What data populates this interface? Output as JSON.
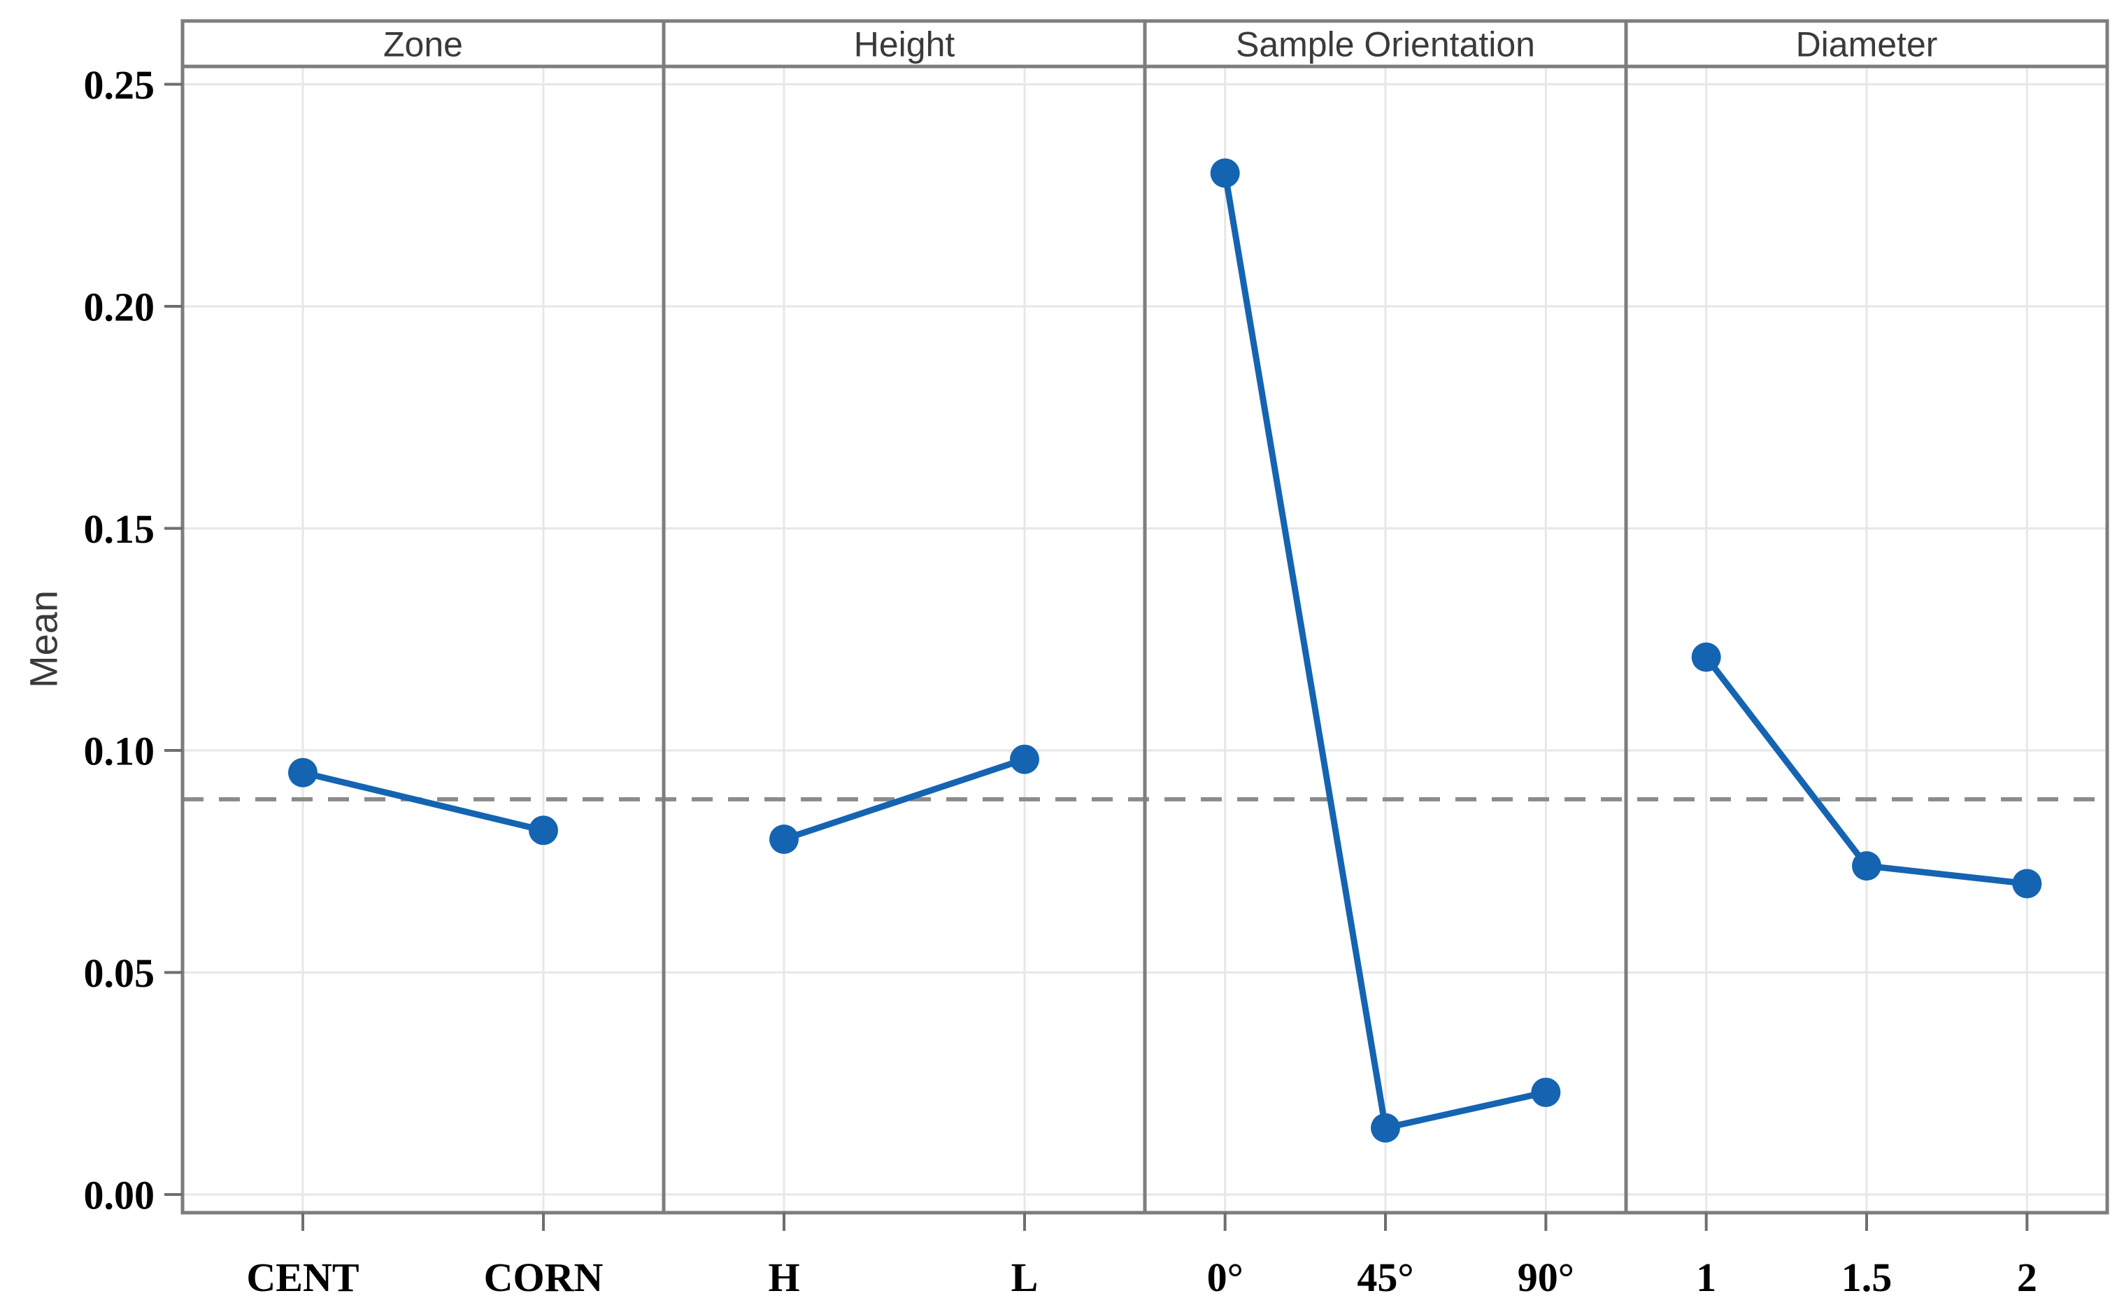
{
  "figure": {
    "kind": "main-effects-plot"
  },
  "chart_data": {
    "type": "line",
    "title": "",
    "xlabel": "",
    "ylabel": "Mean",
    "ylim": [
      -0.004,
      0.264
    ],
    "yticks": [
      0.0,
      0.05,
      0.1,
      0.15,
      0.2,
      0.25
    ],
    "ytick_labels": [
      "0.00",
      "0.05",
      "0.10",
      "0.15",
      "0.20",
      "0.25"
    ],
    "grid": true,
    "legend": "none",
    "reference_line": 0.089,
    "panels": [
      {
        "label": "Zone",
        "categories": [
          "CENT",
          "CORN"
        ],
        "values": [
          0.095,
          0.082
        ]
      },
      {
        "label": "Height",
        "categories": [
          "H",
          "L"
        ],
        "values": [
          0.08,
          0.098
        ]
      },
      {
        "label": "Sample Orientation",
        "categories": [
          "0°",
          "45°",
          "90°"
        ],
        "values": [
          0.23,
          0.015,
          0.023
        ]
      },
      {
        "label": "Diameter",
        "categories": [
          "1",
          "1.5",
          "2"
        ],
        "values": [
          0.121,
          0.074,
          0.07
        ]
      }
    ],
    "colors": {
      "series": "#1464b2",
      "marker": "#1464b2",
      "grid": "#e7e7e7",
      "frame": "#7d7d7d",
      "tick": "#6e6e6e",
      "reference": "#8b8b8b",
      "header_text": "#3a3a3a",
      "tick_label_text": "#000000",
      "background": "#ffffff"
    }
  }
}
